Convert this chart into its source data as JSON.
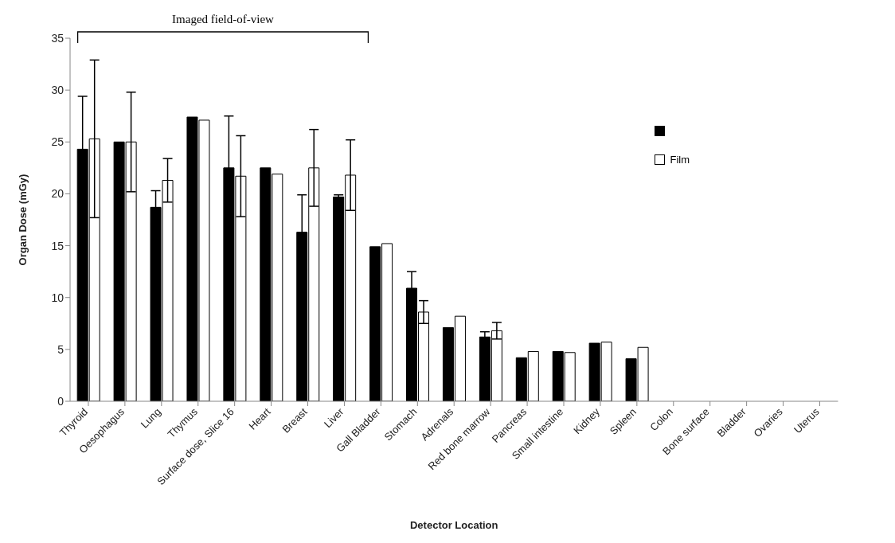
{
  "chart_data": {
    "type": "bar",
    "xlabel": "Detector Location",
    "ylabel": "Organ Dose (mGy)",
    "annotations": [
      "Imaged field-of-view"
    ],
    "categories": [
      "Thyroid",
      "Oesophagus",
      "Lung",
      "Thymus",
      "Surface dose, Slice 16",
      "Heart",
      "Breast",
      "Liver",
      "Gall Bladder",
      "Stomach",
      "Adrenals",
      "Red bone marrow",
      "Pancreas",
      "Small intestine",
      "Kidney",
      "Spleen",
      "Colon",
      "Bone surface",
      "Bladder",
      "Ovaries",
      "Uterus"
    ],
    "series": [
      {
        "color": "#000000",
        "values": [
          24.3,
          25.0,
          18.7,
          27.4,
          22.5,
          22.5,
          16.3,
          19.7,
          14.9,
          10.9,
          7.1,
          6.2,
          4.2,
          4.8,
          5.6,
          4.1,
          null,
          null,
          null,
          null,
          null
        ],
        "errors": [
          5.1,
          null,
          1.6,
          null,
          5.0,
          null,
          3.6,
          0.2,
          null,
          1.6,
          null,
          0.5,
          null,
          null,
          null,
          null,
          null,
          null,
          null,
          null,
          null
        ]
      },
      {
        "name": "Film",
        "color": "#ffffff",
        "values": [
          25.3,
          25.0,
          21.3,
          27.1,
          21.7,
          21.9,
          22.5,
          21.8,
          15.2,
          8.6,
          8.2,
          6.8,
          4.8,
          4.7,
          5.7,
          5.2,
          null,
          null,
          null,
          null,
          null
        ],
        "errors": [
          7.6,
          4.8,
          2.1,
          null,
          3.9,
          null,
          3.7,
          3.4,
          null,
          1.1,
          null,
          0.8,
          null,
          null,
          null,
          null,
          null,
          null,
          null,
          null,
          null
        ]
      }
    ],
    "ylim": [
      0,
      35
    ],
    "yticks": [
      0,
      5,
      10,
      15,
      20,
      25,
      30,
      35
    ],
    "grid": false,
    "legend": "right"
  }
}
